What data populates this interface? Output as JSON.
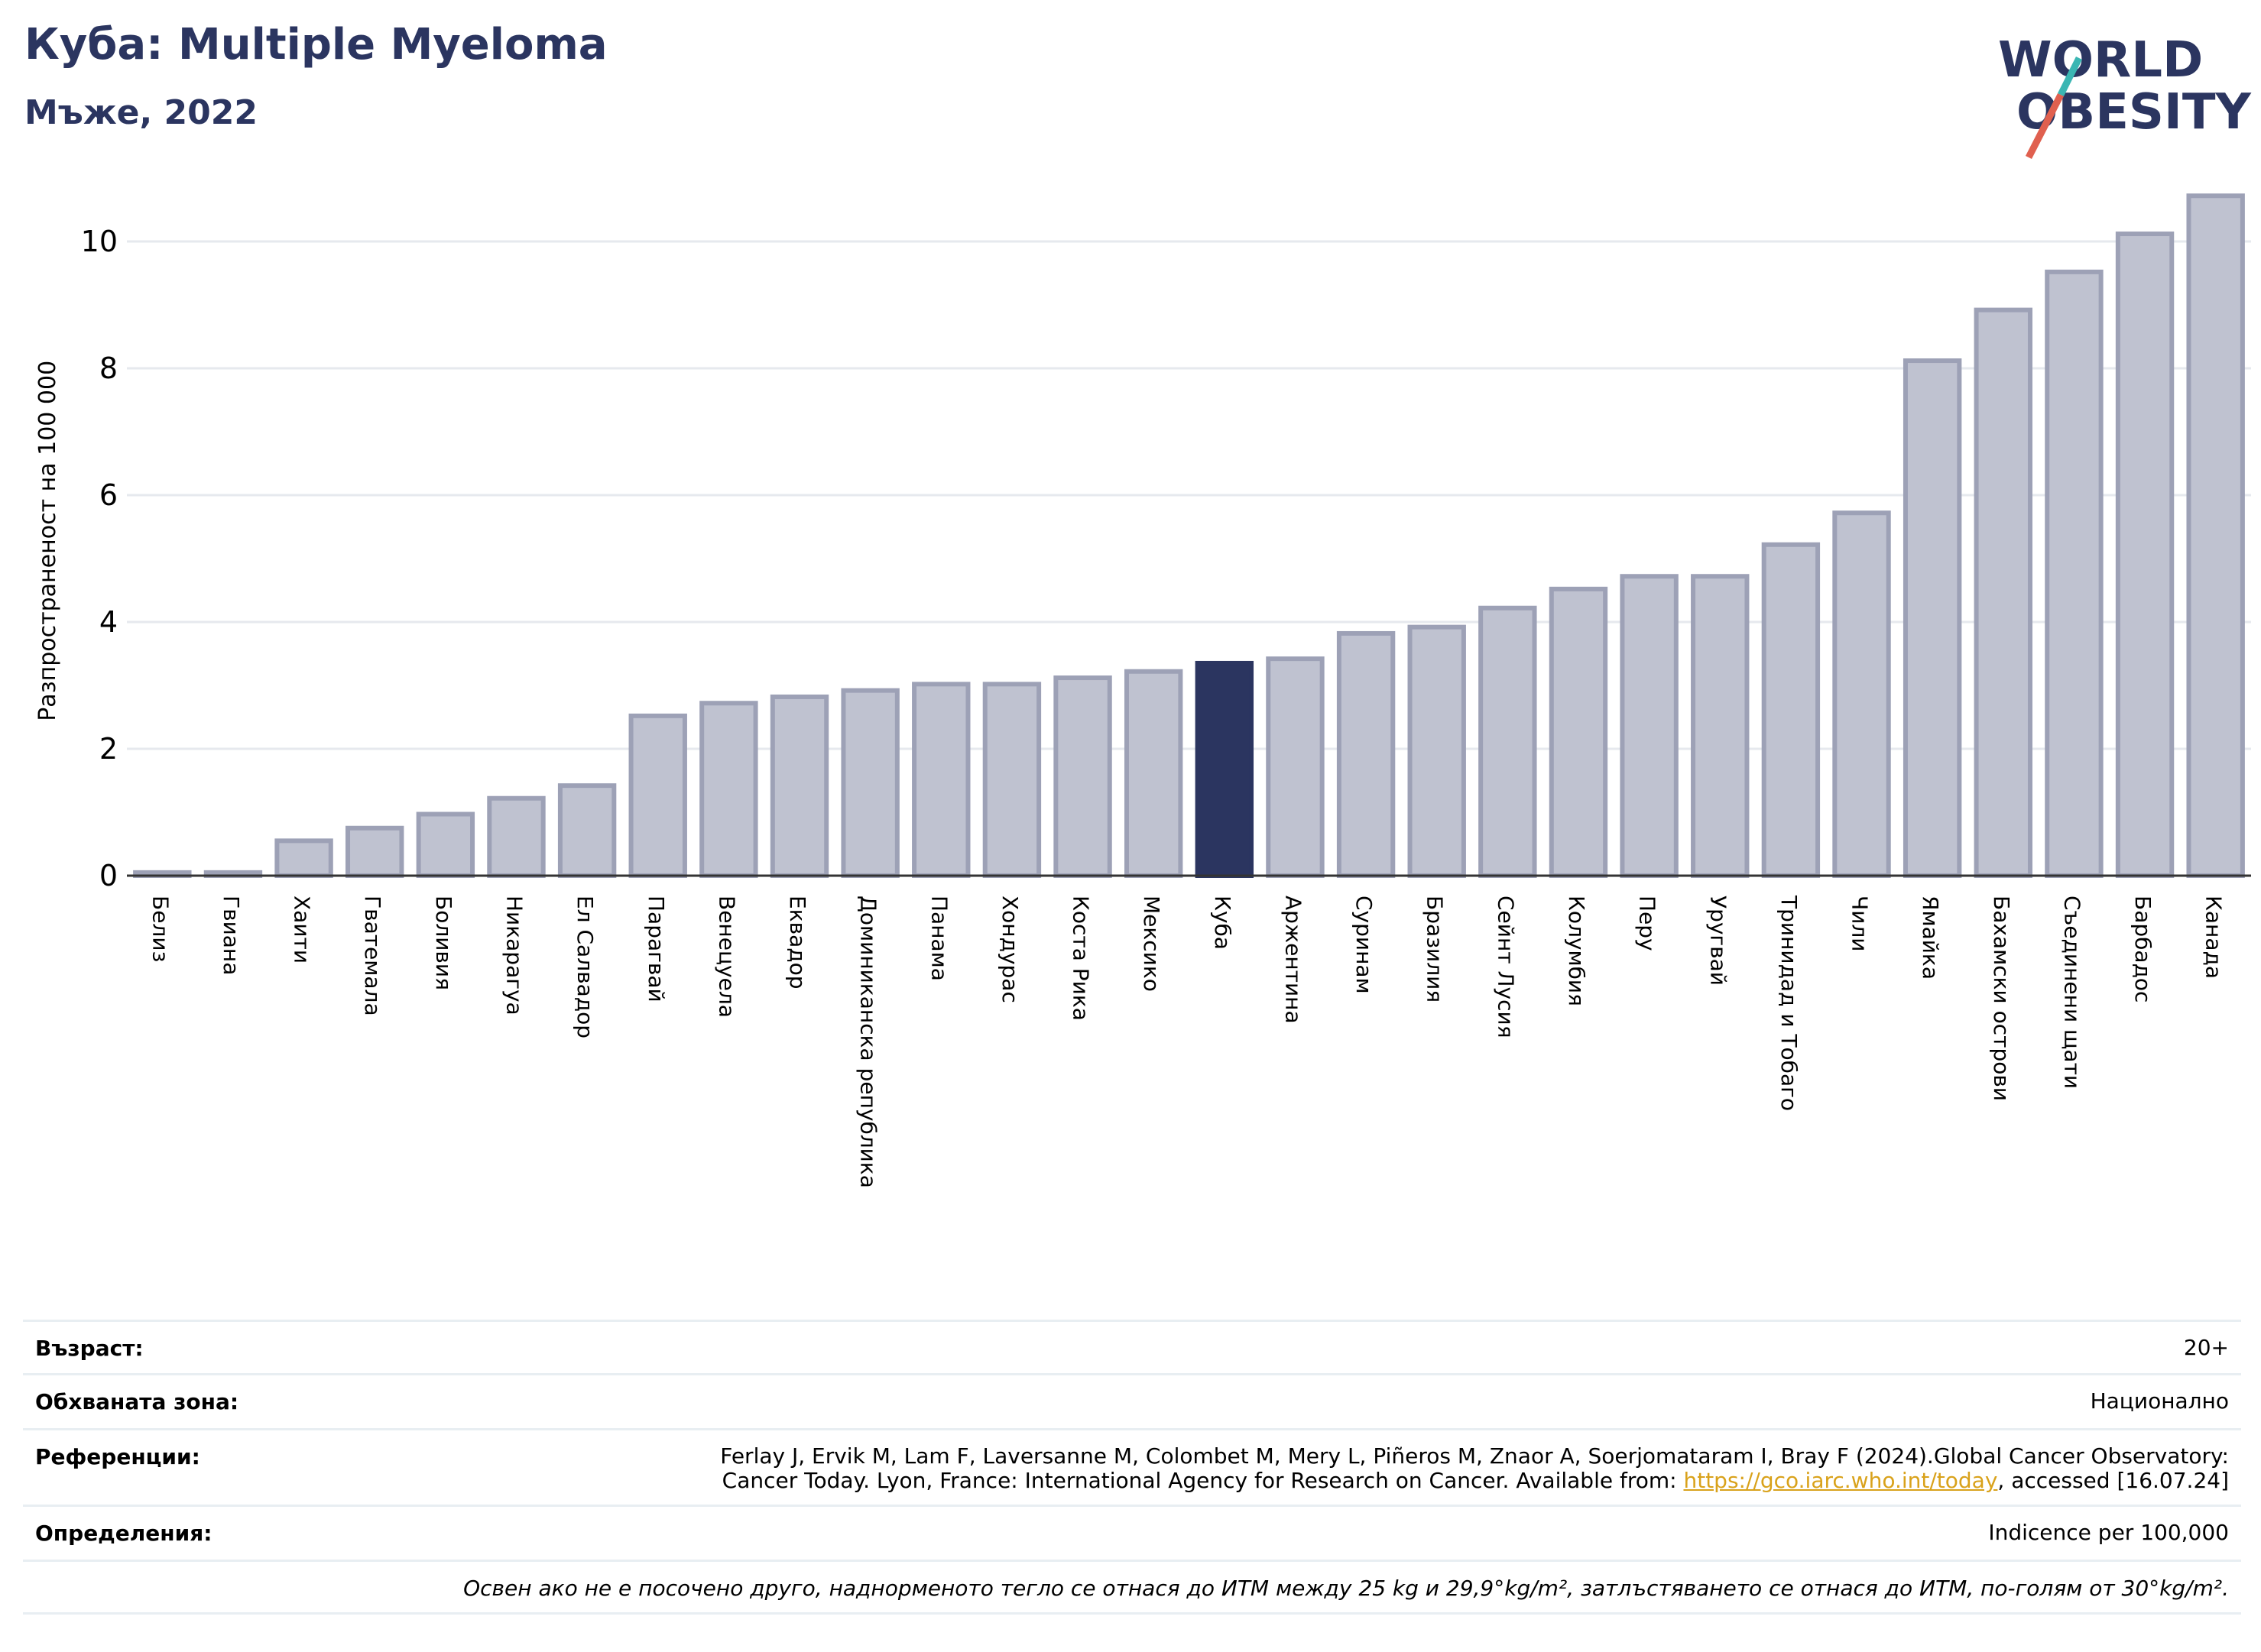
{
  "header": {
    "title": "Куба: Multiple Myeloma",
    "subtitle": "Мъже, 2022"
  },
  "logo": {
    "line1": "WORLD",
    "line2": "OBESITY"
  },
  "colors": {
    "highlight": "#2b3560",
    "bar_fill": "#bfc2d0",
    "bar_stroke": "#9da1b6",
    "title": "#2b3560",
    "logo_red": "#e0604f",
    "logo_teal": "#3bb6b3",
    "link": "#d9a21b"
  },
  "chart_data": {
    "type": "bar",
    "ylabel": "Разпространеност  на 100 000",
    "ylim": [
      0,
      10.8
    ],
    "yticks": [
      0,
      2,
      4,
      6,
      8,
      10
    ],
    "grid": true,
    "highlight": "Куба",
    "categories": [
      "Белиз",
      "Гвиана",
      "Хаити",
      "Гватемала",
      "Боливия",
      "Никарагуа",
      "Ел Салвадор",
      "Парагвай",
      "Венецуела",
      "Еквадор",
      "Доминиканска република",
      "Панама",
      "Хондурас",
      "Коста Рика",
      "Мексико",
      "Куба",
      "Аржентина",
      "Суринам",
      "Бразилия",
      "Сейнт Лусия",
      "Колумбия",
      "Перу",
      "Уругвай",
      "Тринидад и Тобаго",
      "Чили",
      "Ямайка",
      "Бахамски острови",
      "Съединени щати",
      "Барбадос",
      "Канада"
    ],
    "values": [
      0.05,
      0.05,
      0.55,
      0.75,
      0.97,
      1.22,
      1.42,
      2.52,
      2.72,
      2.82,
      2.92,
      3.02,
      3.02,
      3.12,
      3.22,
      3.35,
      3.42,
      3.82,
      3.92,
      4.22,
      4.52,
      4.72,
      4.72,
      5.22,
      5.72,
      8.12,
      8.92,
      9.52,
      10.12,
      10.72
    ]
  },
  "info": {
    "age_label": "Възраст:",
    "age_value": "20+",
    "coverage_label": "Обхваната зона:",
    "coverage_value": "Национално",
    "references_label": "Референции:",
    "references_line1": "Ferlay J, Ervik M, Lam F, Laversanne M, Colombet M, Mery L, Piñeros M, Znaor A, Soerjomataram I, Bray F (2024).Global Cancer Observatory:",
    "references_line2_pre": "Cancer Today. Lyon, France: International Agency for Research on Cancer. Available from: ",
    "references_link": "https://gco.iarc.who.int/today",
    "references_line2_post": ", accessed [16.07.24]",
    "definitions_label": "Определения:",
    "definitions_value": "Indicence per 100,000",
    "note": "Освен ако не е посочено друго, наднорменото тегло се отнася до ИТМ между 25 kg и 29,9°kg/m², затлъстяването се отнася до ИТМ, по-голям от 30°kg/m²."
  }
}
